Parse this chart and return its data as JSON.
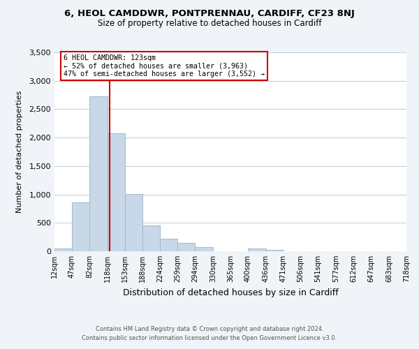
{
  "title1": "6, HEOL CAMDDWR, PONTPRENNAU, CARDIFF, CF23 8NJ",
  "title2": "Size of property relative to detached houses in Cardiff",
  "xlabel": "Distribution of detached houses by size in Cardiff",
  "ylabel": "Number of detached properties",
  "bar_edges": [
    12,
    47,
    82,
    118,
    153,
    188,
    224,
    259,
    294,
    330,
    365,
    400,
    436,
    471,
    506,
    541,
    577,
    612,
    647,
    683,
    718
  ],
  "bar_heights": [
    55,
    855,
    2730,
    2080,
    1010,
    455,
    215,
    145,
    70,
    0,
    0,
    55,
    30,
    0,
    0,
    0,
    0,
    0,
    0,
    0
  ],
  "bar_color": "#c8d8e8",
  "bar_edgecolor": "#a0b8cc",
  "vline_x": 123,
  "vline_color": "#cc0000",
  "annotation_title": "6 HEOL CAMDDWR: 123sqm",
  "annotation_line1": "← 52% of detached houses are smaller (3,963)",
  "annotation_line2": "47% of semi-detached houses are larger (3,552) →",
  "annotation_box_edgecolor": "#cc0000",
  "ylim": [
    0,
    3500
  ],
  "yticks": [
    0,
    500,
    1000,
    1500,
    2000,
    2500,
    3000,
    3500
  ],
  "tick_labels": [
    "12sqm",
    "47sqm",
    "82sqm",
    "118sqm",
    "153sqm",
    "188sqm",
    "224sqm",
    "259sqm",
    "294sqm",
    "330sqm",
    "365sqm",
    "400sqm",
    "436sqm",
    "471sqm",
    "506sqm",
    "541sqm",
    "577sqm",
    "612sqm",
    "647sqm",
    "683sqm",
    "718sqm"
  ],
  "footnote1": "Contains HM Land Registry data © Crown copyright and database right 2024.",
  "footnote2": "Contains public sector information licensed under the Open Government Licence v3.0.",
  "bg_color": "#f0f4f8",
  "plot_bg_color": "#ffffff"
}
